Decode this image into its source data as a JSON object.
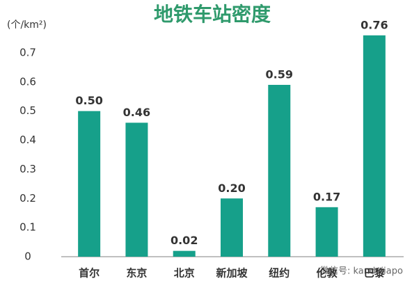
{
  "chart_data": {
    "type": "bar",
    "title": "地铁车站密度",
    "y_label": "(个/km²)",
    "categories": [
      "首尔",
      "东京",
      "北京",
      "新加坡",
      "纽约",
      "伦敦",
      "巴黎"
    ],
    "values": [
      0.5,
      0.46,
      0.02,
      0.2,
      0.59,
      0.17,
      0.76
    ],
    "value_labels": [
      "0.50",
      "0.46",
      "0.02",
      "0.20",
      "0.59",
      "0.17",
      "0.76"
    ],
    "color": "#16a08a",
    "ylim": [
      0,
      0.75
    ],
    "yticks": [
      0,
      0.1,
      0.2,
      0.3,
      0.4,
      0.5,
      0.6,
      0.7
    ],
    "grid": false,
    "watermark": "微信号: kandujiapo"
  }
}
